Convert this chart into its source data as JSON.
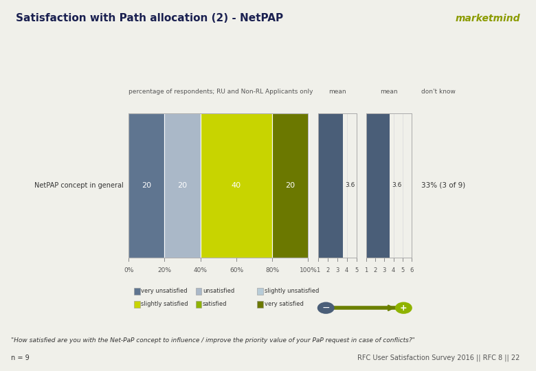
{
  "title": "Satisfaction with Path allocation (2) - NetPAP",
  "brand": "marketmind",
  "row_label": "NetPAP concept in general",
  "subtitle": "percentage of respondents; RU and Non-RL Applicants only",
  "segments": [
    20,
    20,
    40,
    20
  ],
  "segment_colors": [
    "#5f7590",
    "#aab8c8",
    "#c8d400",
    "#6b7800"
  ],
  "segment_labels": [
    "20",
    "20",
    "40",
    "20"
  ],
  "legend_labels": [
    "very unsatisfied",
    "unsatisfied",
    "slightly unsatisfied",
    "slightly satisfied",
    "satisfied",
    "very satisfied"
  ],
  "legend_colors": [
    "#5f7590",
    "#aab8c8",
    "#b8ccd8",
    "#c8d400",
    "#8fb300",
    "#6b7800"
  ],
  "mean_value1": 3.6,
  "mean_value2": 3.6,
  "mean_bar_color": "#4a5e78",
  "dont_know_text": "don't know",
  "dont_know_value": "33% (3 of 9)",
  "mean_label": "mean",
  "mean2_label": "mean",
  "xticklabels": [
    "0%",
    "20%",
    "40%",
    "60%",
    "80%",
    "100%"
  ],
  "footnote": "\"How satisfied are you with the Net-PaP concept to influence / improve the priority value of your PaP request in case of conflicts?\"",
  "n_text": "n = 9",
  "source_text": "RFC User Satisfaction Survey 2016 || RFC 8 || 22",
  "top_bar_color": "#8fb300",
  "header_bg_color": "#e8e8e0",
  "body_bg_color": "#f0f0ea",
  "white_panel_color": "#ffffff",
  "arrow_neg_color": "#4a5e78",
  "arrow_pos_color": "#8fb300"
}
